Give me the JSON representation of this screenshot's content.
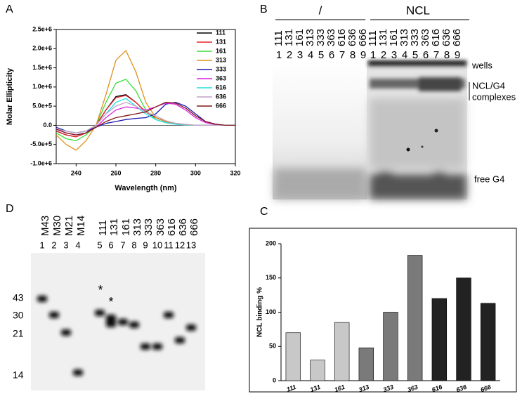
{
  "panel_labels": [
    "A",
    "B",
    "C",
    "D"
  ],
  "chart_data": [
    {
      "type": "line",
      "xlabel": "Wavelength (nm)",
      "ylabel": "Molar Ellipticity",
      "x": [
        230,
        235,
        240,
        245,
        250,
        255,
        260,
        265,
        270,
        275,
        280,
        285,
        290,
        295,
        300,
        305,
        310,
        315,
        320
      ],
      "xlim": [
        230,
        320
      ],
      "xticks": [
        240,
        260,
        280,
        300,
        320
      ],
      "ylim": [
        -1000000,
        2500000
      ],
      "yticks": [
        {
          "value": -1000000,
          "label": "-1.0e+6"
        },
        {
          "value": -500000,
          "label": "-5.0e+5"
        },
        {
          "value": 0,
          "label": "0.0"
        },
        {
          "value": 500000,
          "label": "5.0e+5"
        },
        {
          "value": 1000000,
          "label": "1.0e+6"
        },
        {
          "value": 1500000,
          "label": "1.5e+6"
        },
        {
          "value": 2000000,
          "label": "2.0e+6"
        },
        {
          "value": 2500000,
          "label": "2.5e+6"
        }
      ],
      "legend": "upper right",
      "series": [
        {
          "name": "111",
          "color": "#000000",
          "values": [
            -150000,
            -250000,
            -300000,
            -200000,
            0,
            400000,
            750000,
            800000,
            600000,
            350000,
            200000,
            100000,
            50000,
            20000,
            0,
            0,
            0,
            0,
            0
          ]
        },
        {
          "name": "131",
          "color": "#e8202a",
          "values": [
            -150000,
            -250000,
            -300000,
            -200000,
            0,
            400000,
            720000,
            780000,
            600000,
            350000,
            200000,
            100000,
            50000,
            20000,
            0,
            0,
            0,
            0,
            0
          ]
        },
        {
          "name": "161",
          "color": "#3ddc3d",
          "values": [
            -200000,
            -350000,
            -400000,
            -250000,
            0,
            600000,
            1100000,
            1200000,
            900000,
            400000,
            150000,
            70000,
            30000,
            10000,
            0,
            0,
            0,
            0,
            0
          ]
        },
        {
          "name": "313",
          "color": "#e0901a",
          "values": [
            -250000,
            -500000,
            -650000,
            -400000,
            0,
            800000,
            1700000,
            1950000,
            1400000,
            600000,
            200000,
            100000,
            50000,
            20000,
            0,
            0,
            0,
            0,
            0
          ]
        },
        {
          "name": "333",
          "color": "#1a1ab0",
          "values": [
            -50000,
            -150000,
            -200000,
            -150000,
            -50000,
            50000,
            100000,
            150000,
            180000,
            200000,
            300000,
            550000,
            600000,
            500000,
            300000,
            100000,
            30000,
            0,
            0
          ]
        },
        {
          "name": "363",
          "color": "#e020e0",
          "values": [
            -100000,
            -200000,
            -250000,
            -200000,
            -50000,
            200000,
            400000,
            480000,
            450000,
            400000,
            480000,
            580000,
            550000,
            400000,
            200000,
            70000,
            20000,
            0,
            0
          ]
        },
        {
          "name": "616",
          "color": "#20e0e0",
          "values": [
            -100000,
            -150000,
            -200000,
            -150000,
            0,
            300000,
            600000,
            700000,
            500000,
            300000,
            150000,
            70000,
            30000,
            10000,
            0,
            0,
            0,
            0,
            0
          ]
        },
        {
          "name": "636",
          "color": "#c0a0c8",
          "values": [
            -100000,
            -150000,
            -200000,
            -150000,
            0,
            300000,
            500000,
            600000,
            500000,
            350000,
            250000,
            120000,
            50000,
            20000,
            0,
            0,
            0,
            0,
            0
          ]
        },
        {
          "name": "666",
          "color": "#801818",
          "values": [
            -100000,
            -200000,
            -250000,
            -200000,
            -50000,
            100000,
            200000,
            250000,
            300000,
            350000,
            480000,
            600000,
            580000,
            450000,
            250000,
            100000,
            30000,
            0,
            0
          ]
        }
      ]
    },
    {
      "type": "bar",
      "ylabel": "NCL binding %",
      "categories": [
        "111",
        "131",
        "161",
        "313",
        "333",
        "363",
        "616",
        "636",
        "666"
      ],
      "values": [
        70,
        30,
        85,
        48,
        100,
        183,
        120,
        150,
        113
      ],
      "colors": [
        "#c8c8c8",
        "#c8c8c8",
        "#c8c8c8",
        "#7a7a7a",
        "#7a7a7a",
        "#7a7a7a",
        "#222222",
        "#222222",
        "#222222"
      ],
      "ylim": [
        0,
        200
      ],
      "yticks": [
        0,
        50,
        100,
        150,
        200
      ]
    }
  ],
  "gel_b": {
    "groups": [
      "/",
      "NCL"
    ],
    "lanes": [
      "111",
      "131",
      "161",
      "313",
      "333",
      "363",
      "616",
      "636",
      "666"
    ],
    "lane_numbers": [
      "1",
      "2",
      "3",
      "4",
      "5",
      "6",
      "7",
      "8",
      "9"
    ],
    "annotations": [
      "wells",
      "NCL/G4",
      "complexes",
      "free G4"
    ]
  },
  "gel_d": {
    "lanes": [
      "M43",
      "M30",
      "M21",
      "M14",
      "111",
      "131",
      "161",
      "313",
      "333",
      "363",
      "616",
      "636",
      "666"
    ],
    "lane_numbers": [
      "1",
      "2",
      "3",
      "4",
      "5",
      "6",
      "7",
      "8",
      "9",
      "10",
      "11",
      "12",
      "13"
    ],
    "markers": [
      "43",
      "30",
      "21",
      "14"
    ],
    "stars": [
      "*",
      "*"
    ]
  }
}
